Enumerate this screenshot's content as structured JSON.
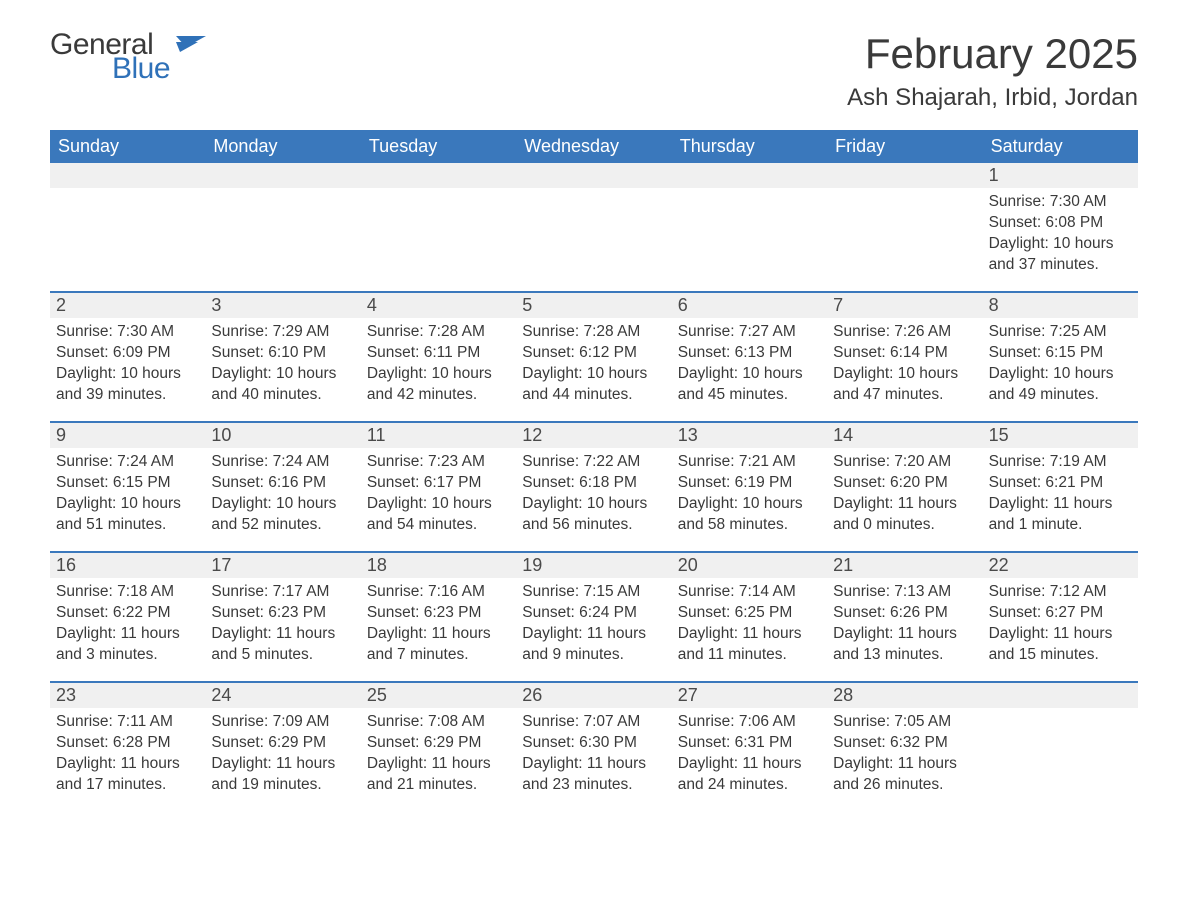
{
  "brand": {
    "word1": "General",
    "word2": "Blue",
    "flag_color": "#2f71b8"
  },
  "title": "February 2025",
  "location": "Ash Shajarah, Irbid, Jordan",
  "colors": {
    "header_bg": "#3a78bc",
    "header_text": "#ffffff",
    "row_divider": "#3a78bc",
    "daystrip_bg": "#f0f0f0",
    "text": "#3a3a3a",
    "background": "#ffffff"
  },
  "typography": {
    "title_fontsize": 42,
    "location_fontsize": 24,
    "weekday_fontsize": 18,
    "daynum_fontsize": 18,
    "body_fontsize": 15.5,
    "font_family": "Segoe UI"
  },
  "layout": {
    "columns": 7,
    "rows": 5,
    "first_day_column_index": 6
  },
  "weekdays": [
    "Sunday",
    "Monday",
    "Tuesday",
    "Wednesday",
    "Thursday",
    "Friday",
    "Saturday"
  ],
  "days": [
    {
      "n": 1,
      "sunrise": "Sunrise: 7:30 AM",
      "sunset": "Sunset: 6:08 PM",
      "daylight": "Daylight: 10 hours and 37 minutes."
    },
    {
      "n": 2,
      "sunrise": "Sunrise: 7:30 AM",
      "sunset": "Sunset: 6:09 PM",
      "daylight": "Daylight: 10 hours and 39 minutes."
    },
    {
      "n": 3,
      "sunrise": "Sunrise: 7:29 AM",
      "sunset": "Sunset: 6:10 PM",
      "daylight": "Daylight: 10 hours and 40 minutes."
    },
    {
      "n": 4,
      "sunrise": "Sunrise: 7:28 AM",
      "sunset": "Sunset: 6:11 PM",
      "daylight": "Daylight: 10 hours and 42 minutes."
    },
    {
      "n": 5,
      "sunrise": "Sunrise: 7:28 AM",
      "sunset": "Sunset: 6:12 PM",
      "daylight": "Daylight: 10 hours and 44 minutes."
    },
    {
      "n": 6,
      "sunrise": "Sunrise: 7:27 AM",
      "sunset": "Sunset: 6:13 PM",
      "daylight": "Daylight: 10 hours and 45 minutes."
    },
    {
      "n": 7,
      "sunrise": "Sunrise: 7:26 AM",
      "sunset": "Sunset: 6:14 PM",
      "daylight": "Daylight: 10 hours and 47 minutes."
    },
    {
      "n": 8,
      "sunrise": "Sunrise: 7:25 AM",
      "sunset": "Sunset: 6:15 PM",
      "daylight": "Daylight: 10 hours and 49 minutes."
    },
    {
      "n": 9,
      "sunrise": "Sunrise: 7:24 AM",
      "sunset": "Sunset: 6:15 PM",
      "daylight": "Daylight: 10 hours and 51 minutes."
    },
    {
      "n": 10,
      "sunrise": "Sunrise: 7:24 AM",
      "sunset": "Sunset: 6:16 PM",
      "daylight": "Daylight: 10 hours and 52 minutes."
    },
    {
      "n": 11,
      "sunrise": "Sunrise: 7:23 AM",
      "sunset": "Sunset: 6:17 PM",
      "daylight": "Daylight: 10 hours and 54 minutes."
    },
    {
      "n": 12,
      "sunrise": "Sunrise: 7:22 AM",
      "sunset": "Sunset: 6:18 PM",
      "daylight": "Daylight: 10 hours and 56 minutes."
    },
    {
      "n": 13,
      "sunrise": "Sunrise: 7:21 AM",
      "sunset": "Sunset: 6:19 PM",
      "daylight": "Daylight: 10 hours and 58 minutes."
    },
    {
      "n": 14,
      "sunrise": "Sunrise: 7:20 AM",
      "sunset": "Sunset: 6:20 PM",
      "daylight": "Daylight: 11 hours and 0 minutes."
    },
    {
      "n": 15,
      "sunrise": "Sunrise: 7:19 AM",
      "sunset": "Sunset: 6:21 PM",
      "daylight": "Daylight: 11 hours and 1 minute."
    },
    {
      "n": 16,
      "sunrise": "Sunrise: 7:18 AM",
      "sunset": "Sunset: 6:22 PM",
      "daylight": "Daylight: 11 hours and 3 minutes."
    },
    {
      "n": 17,
      "sunrise": "Sunrise: 7:17 AM",
      "sunset": "Sunset: 6:23 PM",
      "daylight": "Daylight: 11 hours and 5 minutes."
    },
    {
      "n": 18,
      "sunrise": "Sunrise: 7:16 AM",
      "sunset": "Sunset: 6:23 PM",
      "daylight": "Daylight: 11 hours and 7 minutes."
    },
    {
      "n": 19,
      "sunrise": "Sunrise: 7:15 AM",
      "sunset": "Sunset: 6:24 PM",
      "daylight": "Daylight: 11 hours and 9 minutes."
    },
    {
      "n": 20,
      "sunrise": "Sunrise: 7:14 AM",
      "sunset": "Sunset: 6:25 PM",
      "daylight": "Daylight: 11 hours and 11 minutes."
    },
    {
      "n": 21,
      "sunrise": "Sunrise: 7:13 AM",
      "sunset": "Sunset: 6:26 PM",
      "daylight": "Daylight: 11 hours and 13 minutes."
    },
    {
      "n": 22,
      "sunrise": "Sunrise: 7:12 AM",
      "sunset": "Sunset: 6:27 PM",
      "daylight": "Daylight: 11 hours and 15 minutes."
    },
    {
      "n": 23,
      "sunrise": "Sunrise: 7:11 AM",
      "sunset": "Sunset: 6:28 PM",
      "daylight": "Daylight: 11 hours and 17 minutes."
    },
    {
      "n": 24,
      "sunrise": "Sunrise: 7:09 AM",
      "sunset": "Sunset: 6:29 PM",
      "daylight": "Daylight: 11 hours and 19 minutes."
    },
    {
      "n": 25,
      "sunrise": "Sunrise: 7:08 AM",
      "sunset": "Sunset: 6:29 PM",
      "daylight": "Daylight: 11 hours and 21 minutes."
    },
    {
      "n": 26,
      "sunrise": "Sunrise: 7:07 AM",
      "sunset": "Sunset: 6:30 PM",
      "daylight": "Daylight: 11 hours and 23 minutes."
    },
    {
      "n": 27,
      "sunrise": "Sunrise: 7:06 AM",
      "sunset": "Sunset: 6:31 PM",
      "daylight": "Daylight: 11 hours and 24 minutes."
    },
    {
      "n": 28,
      "sunrise": "Sunrise: 7:05 AM",
      "sunset": "Sunset: 6:32 PM",
      "daylight": "Daylight: 11 hours and 26 minutes."
    }
  ]
}
